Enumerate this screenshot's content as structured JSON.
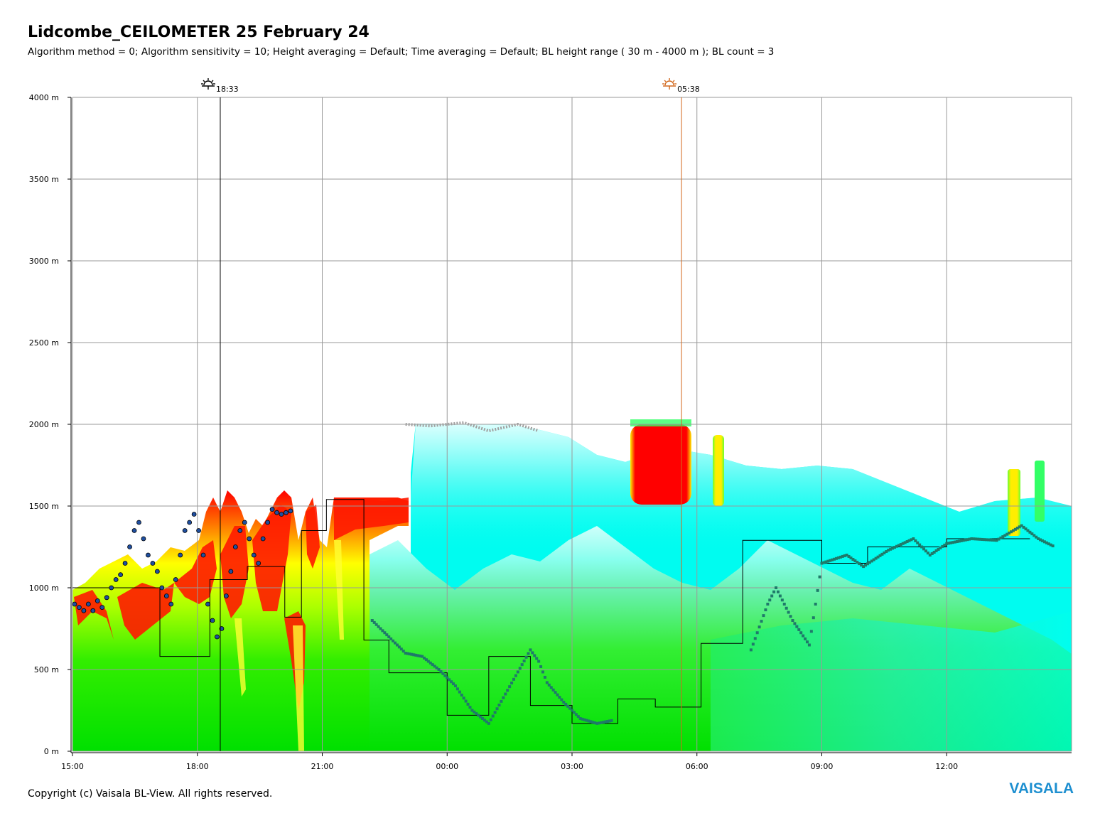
{
  "chart_data": {
    "type": "heatmap",
    "title": "Lidcombe_CEILOMETER 25 February 24",
    "subtitle": "Algorithm method = 0; Algorithm sensitivity = 10; Height averaging = Default; Time averaging = Default; BL height range ( 30 m - 4000 m ); BL count = 3",
    "x_tick_labels": [
      "15:00",
      "18:00",
      "21:00",
      "00:00",
      "03:00",
      "06:00",
      "09:00",
      "12:00"
    ],
    "x_range_hours": [
      0,
      24
    ],
    "y_tick_labels": [
      "0 m",
      "500 m",
      "1000 m",
      "1500 m",
      "2000 m",
      "2500 m",
      "3000 m",
      "3500 m",
      "4000 m"
    ],
    "y_ticks": [
      0,
      500,
      1000,
      1500,
      2000,
      2500,
      3000,
      3500,
      4000
    ],
    "ylim": [
      0,
      4000
    ],
    "grid": true,
    "sunset": {
      "label": "18:33",
      "x_hours": 3.55,
      "color": "#000000",
      "icon": "sunset-icon"
    },
    "sunrise": {
      "label": "05:38",
      "x_hours": 14.63,
      "color": "#d2691e",
      "icon": "sunrise-icon"
    },
    "colors": {
      "backscatter_low": "#00ee00",
      "backscatter_mid": "#ffff00",
      "backscatter_high": "#ff0000",
      "aerosol_thin": "#00ffff",
      "bl_height": "#1f7a6a",
      "cloud_top": "#a0a0a0",
      "bl_points": "#1f4fa0"
    },
    "bl_height_step_series": [
      [
        0.0,
        1000
      ],
      [
        2.1,
        1000
      ],
      [
        2.1,
        580
      ],
      [
        3.3,
        580
      ],
      [
        3.3,
        1050
      ],
      [
        4.2,
        1050
      ],
      [
        4.2,
        1130
      ],
      [
        5.1,
        1130
      ],
      [
        5.1,
        820
      ],
      [
        5.5,
        820
      ],
      [
        5.5,
        1350
      ],
      [
        6.1,
        1350
      ],
      [
        6.1,
        1540
      ],
      [
        7.0,
        1540
      ],
      [
        7.0,
        680
      ],
      [
        7.6,
        680
      ],
      [
        7.6,
        480
      ],
      [
        9.0,
        480
      ],
      [
        9.0,
        220
      ],
      [
        10.0,
        220
      ],
      [
        10.0,
        580
      ],
      [
        11.0,
        580
      ],
      [
        11.0,
        280
      ],
      [
        12.0,
        280
      ],
      [
        12.0,
        170
      ],
      [
        13.1,
        170
      ],
      [
        13.1,
        320
      ],
      [
        14.0,
        320
      ],
      [
        14.0,
        270
      ],
      [
        15.1,
        270
      ],
      [
        15.1,
        660
      ],
      [
        16.1,
        660
      ],
      [
        16.1,
        1290
      ],
      [
        18.0,
        1290
      ],
      [
        18.0,
        1150
      ],
      [
        19.1,
        1150
      ],
      [
        19.1,
        1250
      ],
      [
        21.0,
        1250
      ],
      [
        21.0,
        1300
      ],
      [
        22.0,
        1300
      ],
      [
        22.0,
        1300
      ],
      [
        23.0,
        1300
      ]
    ],
    "bl_height_series": [
      [
        7.2,
        800
      ],
      [
        7.6,
        700
      ],
      [
        8.0,
        600
      ],
      [
        8.4,
        580
      ],
      [
        8.8,
        500
      ],
      [
        9.2,
        400
      ],
      [
        9.6,
        250
      ],
      [
        10.0,
        170
      ],
      [
        11.0,
        620
      ],
      [
        11.2,
        550
      ],
      [
        11.4,
        420
      ],
      [
        11.8,
        300
      ],
      [
        12.2,
        200
      ],
      [
        12.6,
        170
      ],
      [
        13.0,
        190
      ],
      [
        16.3,
        620
      ],
      [
        16.7,
        900
      ],
      [
        16.9,
        1000
      ],
      [
        17.3,
        800
      ],
      [
        17.7,
        650
      ],
      [
        18.0,
        1150
      ],
      [
        18.6,
        1200
      ],
      [
        19.0,
        1130
      ],
      [
        19.6,
        1230
      ],
      [
        20.2,
        1300
      ],
      [
        20.6,
        1200
      ],
      [
        21.0,
        1270
      ],
      [
        21.6,
        1300
      ],
      [
        22.2,
        1290
      ],
      [
        22.8,
        1380
      ],
      [
        23.2,
        1300
      ],
      [
        23.6,
        1250
      ]
    ],
    "cloud_top_series": [
      [
        8.0,
        2000
      ],
      [
        8.6,
        1990
      ],
      [
        9.4,
        2010
      ],
      [
        10.0,
        1960
      ],
      [
        10.7,
        2000
      ],
      [
        11.2,
        1960
      ]
    ]
  },
  "copyright": "Copyright (c) Vaisala BL-View. All rights reserved.",
  "logo": "VAISALA"
}
